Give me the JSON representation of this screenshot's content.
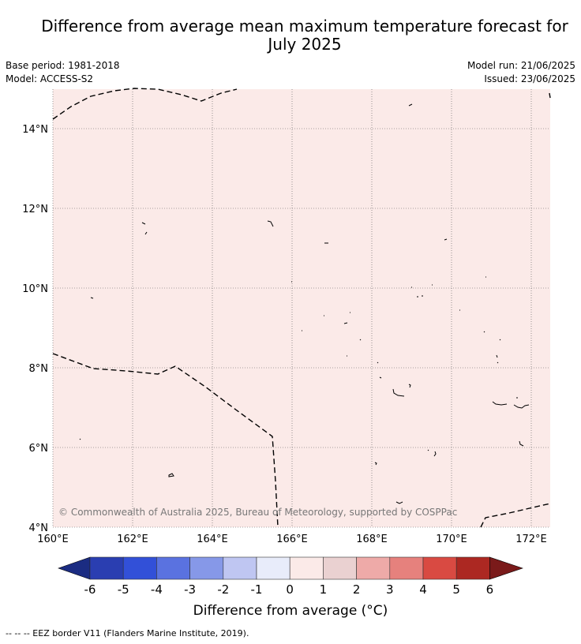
{
  "title_line1": "Difference from average mean maximum temperature forecast for",
  "title_line2": "July 2025",
  "base_period": "Base period: 1981-2018",
  "model": "Model: ACCESS-S2",
  "model_run": "Model run: 21/06/2025",
  "issued": "Issued: 23/06/2025",
  "map": {
    "lon_ticks": [
      "160°E",
      "162°E",
      "164°E",
      "166°E",
      "168°E",
      "170°E",
      "172°E"
    ],
    "lat_ticks": [
      "14°N",
      "12°N",
      "10°N",
      "8°N",
      "6°N",
      "4°N"
    ],
    "fill_color": "#fbeae8",
    "copyright": "© Commonwealth of Australia 2025, Bureau of Meteorology, supported by COSPPac"
  },
  "colorbar": {
    "labels": [
      "-6",
      "-5",
      "-4",
      "-3",
      "-2",
      "-1",
      "0",
      "1",
      "2",
      "3",
      "4",
      "5",
      "6"
    ],
    "colors": [
      "#2a3eb1",
      "#3250d8",
      "#5a72e0",
      "#8698e8",
      "#bfc6f2",
      "#e8ecfa",
      "#fbeae8",
      "#ead1d1",
      "#eeaaa8",
      "#e6817d",
      "#d94a42",
      "#ac2822"
    ],
    "under_color": "#1b2c82",
    "over_color": "#7a1a1a",
    "label": "Difference from average (°C)"
  },
  "footer": "--  --  -- EEZ border V11 (Flanders Marine Institute, 2019)."
}
